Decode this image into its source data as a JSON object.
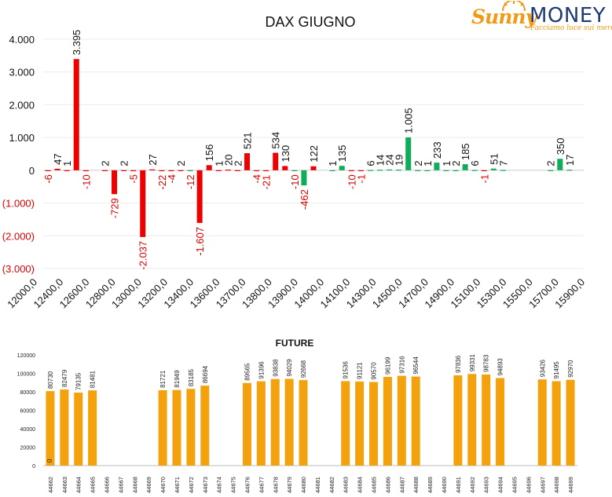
{
  "logo": {
    "brand_part1": "Sunny",
    "brand_part2": "MONEY",
    "tagline": "Facciamo luce sui mercati"
  },
  "colors": {
    "positive": "#0fac5a",
    "negative": "#ee0000",
    "future": "#f4a10e",
    "label_negative": "#dd0000",
    "label_positive": "#111111"
  },
  "chart_data": [
    {
      "type": "bar",
      "title": "DAX GIUGNO",
      "ylim": [
        -3000,
        4000
      ],
      "yticks": [
        "(3.000)",
        "(2.000)",
        "(1.000)",
        "0",
        "1.000",
        "2.000",
        "3.000",
        "4.000"
      ],
      "ytick_values": [
        -3000,
        -2000,
        -1000,
        0,
        1000,
        2000,
        3000,
        4000
      ],
      "grid": true,
      "categories_labeled": [
        "12000,0",
        "12400,0",
        "12600,0",
        "12800,0",
        "13000,0",
        "13200,0",
        "13400,0",
        "13600,0",
        "13700,0",
        "13800,0",
        "13900,0",
        "14000,0",
        "14100,0",
        "14300,0",
        "14500,0",
        "14700,0",
        "14900,0",
        "15100,0",
        "15300,0",
        "15500,0",
        "15700,0",
        "15900,0"
      ],
      "bars": [
        {
          "slot": 0,
          "value": -6,
          "color": "negative"
        },
        {
          "slot": 1,
          "value": 47,
          "color": "negative"
        },
        {
          "slot": 2,
          "value": 1,
          "color": "negative"
        },
        {
          "slot": 3,
          "value": 3395,
          "color": "negative"
        },
        {
          "slot": 4,
          "value": -10,
          "color": "negative"
        },
        {
          "slot": 6,
          "value": 2,
          "color": "negative"
        },
        {
          "slot": 7,
          "value": -729,
          "color": "negative"
        },
        {
          "slot": 8,
          "value": 2,
          "color": "negative"
        },
        {
          "slot": 9,
          "value": -5,
          "color": "negative"
        },
        {
          "slot": 10,
          "value": -2037,
          "color": "negative"
        },
        {
          "slot": 11,
          "value": 27,
          "color": "negative"
        },
        {
          "slot": 12,
          "value": -22,
          "color": "negative"
        },
        {
          "slot": 13,
          "value": -4,
          "color": "negative"
        },
        {
          "slot": 14,
          "value": 2,
          "color": "negative"
        },
        {
          "slot": 15,
          "value": -12,
          "color": "positive"
        },
        {
          "slot": 16,
          "value": -1607,
          "color": "negative"
        },
        {
          "slot": 17,
          "value": 156,
          "color": "negative"
        },
        {
          "slot": 18,
          "value": 1,
          "color": "negative"
        },
        {
          "slot": 19,
          "value": 20,
          "color": "negative"
        },
        {
          "slot": 20,
          "value": 2,
          "color": "negative"
        },
        {
          "slot": 21,
          "value": 521,
          "color": "negative"
        },
        {
          "slot": 22,
          "value": -4,
          "color": "negative"
        },
        {
          "slot": 23,
          "value": -21,
          "color": "negative"
        },
        {
          "slot": 24,
          "value": 534,
          "color": "negative"
        },
        {
          "slot": 25,
          "value": 130,
          "color": "negative"
        },
        {
          "slot": 26,
          "value": -10,
          "color": "positive"
        },
        {
          "slot": 27,
          "value": -462,
          "color": "positive"
        },
        {
          "slot": 28,
          "value": 122,
          "color": "negative"
        },
        {
          "slot": 30,
          "value": 1,
          "color": "positive"
        },
        {
          "slot": 31,
          "value": 135,
          "color": "positive"
        },
        {
          "slot": 32,
          "value": -10,
          "color": "negative"
        },
        {
          "slot": 33,
          "value": -1,
          "color": "negative"
        },
        {
          "slot": 34,
          "value": 6,
          "color": "positive"
        },
        {
          "slot": 35,
          "value": 14,
          "color": "positive"
        },
        {
          "slot": 36,
          "value": 24,
          "color": "positive"
        },
        {
          "slot": 37,
          "value": 19,
          "color": "positive"
        },
        {
          "slot": 38,
          "value": 1005,
          "color": "positive"
        },
        {
          "slot": 39,
          "value": 2,
          "color": "positive"
        },
        {
          "slot": 40,
          "value": 1,
          "color": "positive"
        },
        {
          "slot": 41,
          "value": 233,
          "color": "positive"
        },
        {
          "slot": 42,
          "value": 1,
          "color": "positive"
        },
        {
          "slot": 43,
          "value": 2,
          "color": "positive"
        },
        {
          "slot": 44,
          "value": 185,
          "color": "positive"
        },
        {
          "slot": 45,
          "value": 6,
          "color": "positive"
        },
        {
          "slot": 46,
          "value": -1,
          "color": "negative"
        },
        {
          "slot": 47,
          "value": 51,
          "color": "positive"
        },
        {
          "slot": 48,
          "value": 7,
          "color": "positive"
        },
        {
          "slot": 53,
          "value": 2,
          "color": "positive"
        },
        {
          "slot": 54,
          "value": 350,
          "color": "positive"
        },
        {
          "slot": 55,
          "value": 17,
          "color": "positive"
        }
      ]
    },
    {
      "type": "bar",
      "title": "FUTURE",
      "ylim": [
        0,
        120000
      ],
      "yticks": [
        "0",
        "20000",
        "40000",
        "60000",
        "80000",
        "100000",
        "120000"
      ],
      "ytick_values": [
        0,
        20000,
        40000,
        60000,
        80000,
        100000,
        120000
      ],
      "grid": false,
      "categories": [
        "44662",
        "44663",
        "44664",
        "44665",
        "44666",
        "44667",
        "44668",
        "44669",
        "44670",
        "44671",
        "44672",
        "44673",
        "44674",
        "44675",
        "44676",
        "44677",
        "44678",
        "44679",
        "44680",
        "44681",
        "44682",
        "44683",
        "44684",
        "44685",
        "44686",
        "44687",
        "44688",
        "44689",
        "44690",
        "44691",
        "44692",
        "44693",
        "44694",
        "44695",
        "44696",
        "44697",
        "44698",
        "44699"
      ],
      "values": [
        80730,
        82479,
        79135,
        81481,
        null,
        null,
        null,
        null,
        81721,
        81949,
        83185,
        86694,
        null,
        null,
        89565,
        91396,
        93838,
        94029,
        92668,
        null,
        null,
        91536,
        91121,
        90570,
        96199,
        97316,
        96544,
        null,
        null,
        97836,
        99331,
        98783,
        94893,
        null,
        null,
        93426,
        91495,
        92970
      ],
      "extra_label": "0"
    }
  ]
}
